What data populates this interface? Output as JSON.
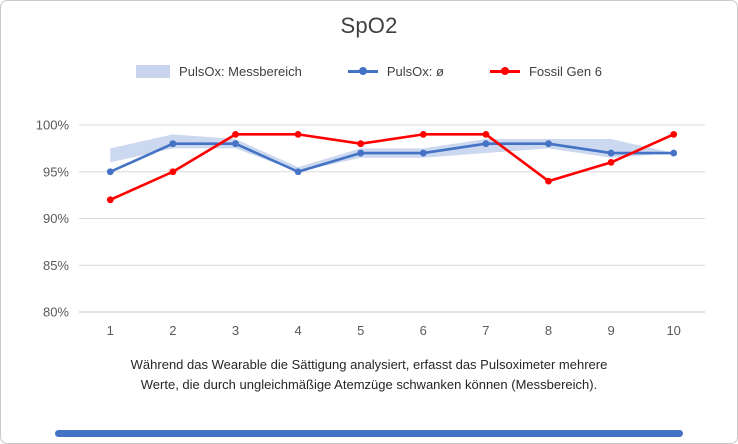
{
  "chart_data": {
    "type": "line",
    "title": "SpO2",
    "categories": [
      1,
      2,
      3,
      4,
      5,
      6,
      7,
      8,
      9,
      10
    ],
    "series": [
      {
        "name": "PulsOx: Messbereich",
        "type": "band",
        "low": [
          96,
          97.5,
          97.5,
          95,
          96.5,
          96.5,
          97,
          97.5,
          96.5,
          97
        ],
        "high": [
          97.5,
          99,
          98.5,
          95.5,
          97.5,
          97.5,
          98.5,
          98.5,
          98.5,
          97
        ],
        "color": "#b7c7e8"
      },
      {
        "name": "PulsOx: ø",
        "type": "line",
        "values": [
          95,
          98,
          98,
          95,
          97,
          97,
          98,
          98,
          97,
          97
        ],
        "color": "#4472c4"
      },
      {
        "name": "Fossil Gen 6",
        "type": "line",
        "values": [
          92,
          95,
          99,
          99,
          98,
          99,
          99,
          94,
          96,
          99
        ],
        "color": "#ff0000"
      }
    ],
    "xlabel": "",
    "ylabel": "",
    "ylim": [
      80,
      100
    ],
    "y_ticks": [
      "80%",
      "85%",
      "90%",
      "95%",
      "100%"
    ],
    "y_tick_values": [
      80,
      85,
      90,
      95,
      100
    ],
    "grid": true,
    "legend_position": "top"
  },
  "caption": {
    "line1": "Während das Wearable die Sättigung analysiert, erfasst das Pulsoximeter mehrere",
    "line2": "Werte, die durch ungleichmäßige Atemzüge schwanken können (Messbereich)."
  },
  "colors": {
    "gridline": "#d9d9d9",
    "axis_line": "#bfbfbf",
    "tick_text": "#595959",
    "title_text": "#3f3f3f",
    "caption_text": "#262626",
    "accent_bar": "#4472c4",
    "card_border": "#c9c9c9"
  }
}
